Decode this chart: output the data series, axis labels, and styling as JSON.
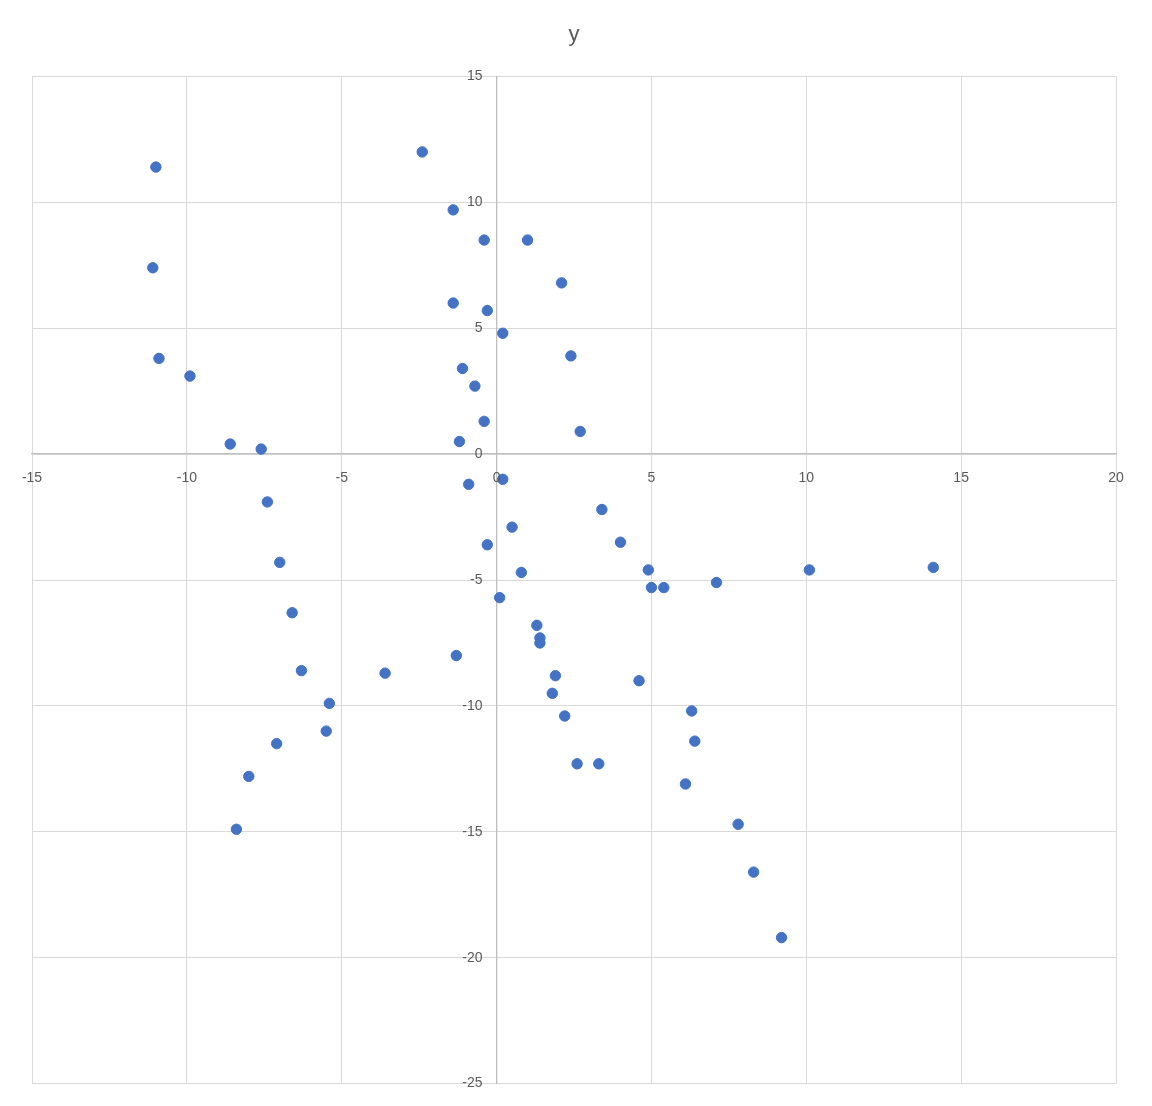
{
  "chart_data": {
    "type": "scatter",
    "title": "y",
    "x": [
      -11.0,
      -2.4,
      -1.4,
      -0.4,
      1.0,
      -11.1,
      2.1,
      -1.4,
      -0.3,
      0.2,
      -10.9,
      2.4,
      -9.9,
      -1.1,
      -0.7,
      -0.4,
      2.7,
      -1.2,
      -8.6,
      -7.6,
      -0.9,
      0.2,
      -7.4,
      3.4,
      0.5,
      -0.3,
      4.0,
      -7.0,
      0.8,
      4.9,
      5.0,
      5.4,
      7.1,
      10.1,
      14.1,
      0.1,
      -6.6,
      1.3,
      1.4,
      1.4,
      -6.3,
      -3.6,
      -1.3,
      1.9,
      4.6,
      1.8,
      -5.4,
      2.2,
      6.3,
      -5.5,
      -7.1,
      6.4,
      2.6,
      3.3,
      6.1,
      -8.0,
      -8.4,
      7.8,
      8.3,
      9.2
    ],
    "values": [
      11.4,
      12.0,
      9.7,
      8.5,
      8.5,
      7.4,
      6.8,
      6.0,
      5.7,
      4.8,
      3.8,
      3.9,
      3.1,
      3.4,
      2.7,
      1.3,
      0.9,
      0.5,
      0.4,
      0.2,
      -1.2,
      -1.0,
      -1.9,
      -2.2,
      -2.9,
      -3.6,
      -3.5,
      -4.3,
      -4.7,
      -4.6,
      -5.3,
      -5.3,
      -5.1,
      -4.6,
      -4.5,
      -5.7,
      -6.3,
      -6.8,
      -7.3,
      -7.5,
      -8.6,
      -8.7,
      -8.0,
      -8.8,
      -9.0,
      -9.5,
      -9.9,
      -10.4,
      -10.2,
      -11.0,
      -11.5,
      -11.4,
      -12.3,
      -12.3,
      -13.1,
      -12.8,
      -14.9,
      -14.7,
      -16.6,
      -19.2
    ],
    "color": "#4472c4",
    "xlim": [
      -15,
      20
    ],
    "ylim": [
      -25,
      15
    ],
    "xticks": [
      -15,
      -10,
      -5,
      0,
      5,
      10,
      15,
      20
    ],
    "yticks": [
      -25,
      -20,
      -15,
      -10,
      -5,
      0,
      5,
      10,
      15
    ],
    "grid": true,
    "marker": "circle"
  }
}
